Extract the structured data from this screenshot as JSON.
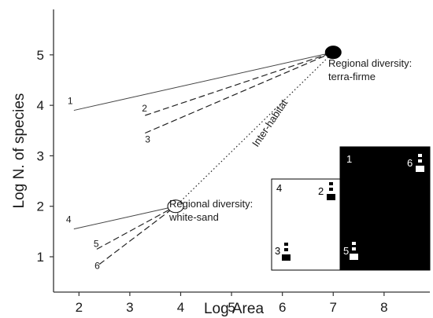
{
  "chart_data": {
    "type": "line",
    "xlabel": "Log Area",
    "ylabel": "Log N. of species",
    "xlim": [
      1.5,
      8.9
    ],
    "ylim": [
      0.3,
      5.9
    ],
    "x_ticks": [
      2,
      3,
      4,
      5,
      6,
      7,
      8
    ],
    "y_ticks": [
      1,
      2,
      3,
      4,
      5
    ],
    "grid": false,
    "series": [
      {
        "name": "1",
        "style": "solid",
        "x": [
          1.9,
          7.0
        ],
        "y": [
          3.9,
          5.05
        ]
      },
      {
        "name": "2",
        "style": "dashed",
        "x": [
          3.3,
          7.0
        ],
        "y": [
          3.8,
          5.05
        ]
      },
      {
        "name": "3",
        "style": "dashed",
        "x": [
          3.3,
          7.0
        ],
        "y": [
          3.45,
          5.05
        ]
      },
      {
        "name": "4",
        "style": "solid",
        "x": [
          1.9,
          3.9
        ],
        "y": [
          1.55,
          2.0
        ]
      },
      {
        "name": "5",
        "style": "dashed",
        "x": [
          2.35,
          3.9
        ],
        "y": [
          1.15,
          2.0
        ]
      },
      {
        "name": "6",
        "style": "dashed",
        "x": [
          2.4,
          3.9
        ],
        "y": [
          0.85,
          2.0
        ]
      },
      {
        "name": "Inter-habitat",
        "style": "dotted",
        "x": [
          3.9,
          7.0
        ],
        "y": [
          2.0,
          5.05
        ]
      }
    ],
    "points": [
      {
        "name": "terra-firme",
        "x": 7.0,
        "y": 5.05,
        "fill": "#000000"
      },
      {
        "name": "white-sand",
        "x": 3.9,
        "y": 2.0,
        "fill": "#ffffff"
      }
    ],
    "annotations": {
      "terra_firme": [
        "Regional diversity:",
        "terra-firme"
      ],
      "white_sand": [
        "Regional diversity:",
        "white-sand"
      ],
      "inter_habitat": "Inter-habitat"
    },
    "inset": {
      "panels": [
        {
          "label": "4",
          "background": "#ffffff"
        },
        {
          "label": "1",
          "background": "#000000"
        }
      ],
      "markers": [
        {
          "label": "2",
          "color": "#000000"
        },
        {
          "label": "3",
          "color": "#000000"
        },
        {
          "label": "5",
          "color": "#ffffff"
        },
        {
          "label": "6",
          "color": "#ffffff"
        }
      ]
    }
  }
}
